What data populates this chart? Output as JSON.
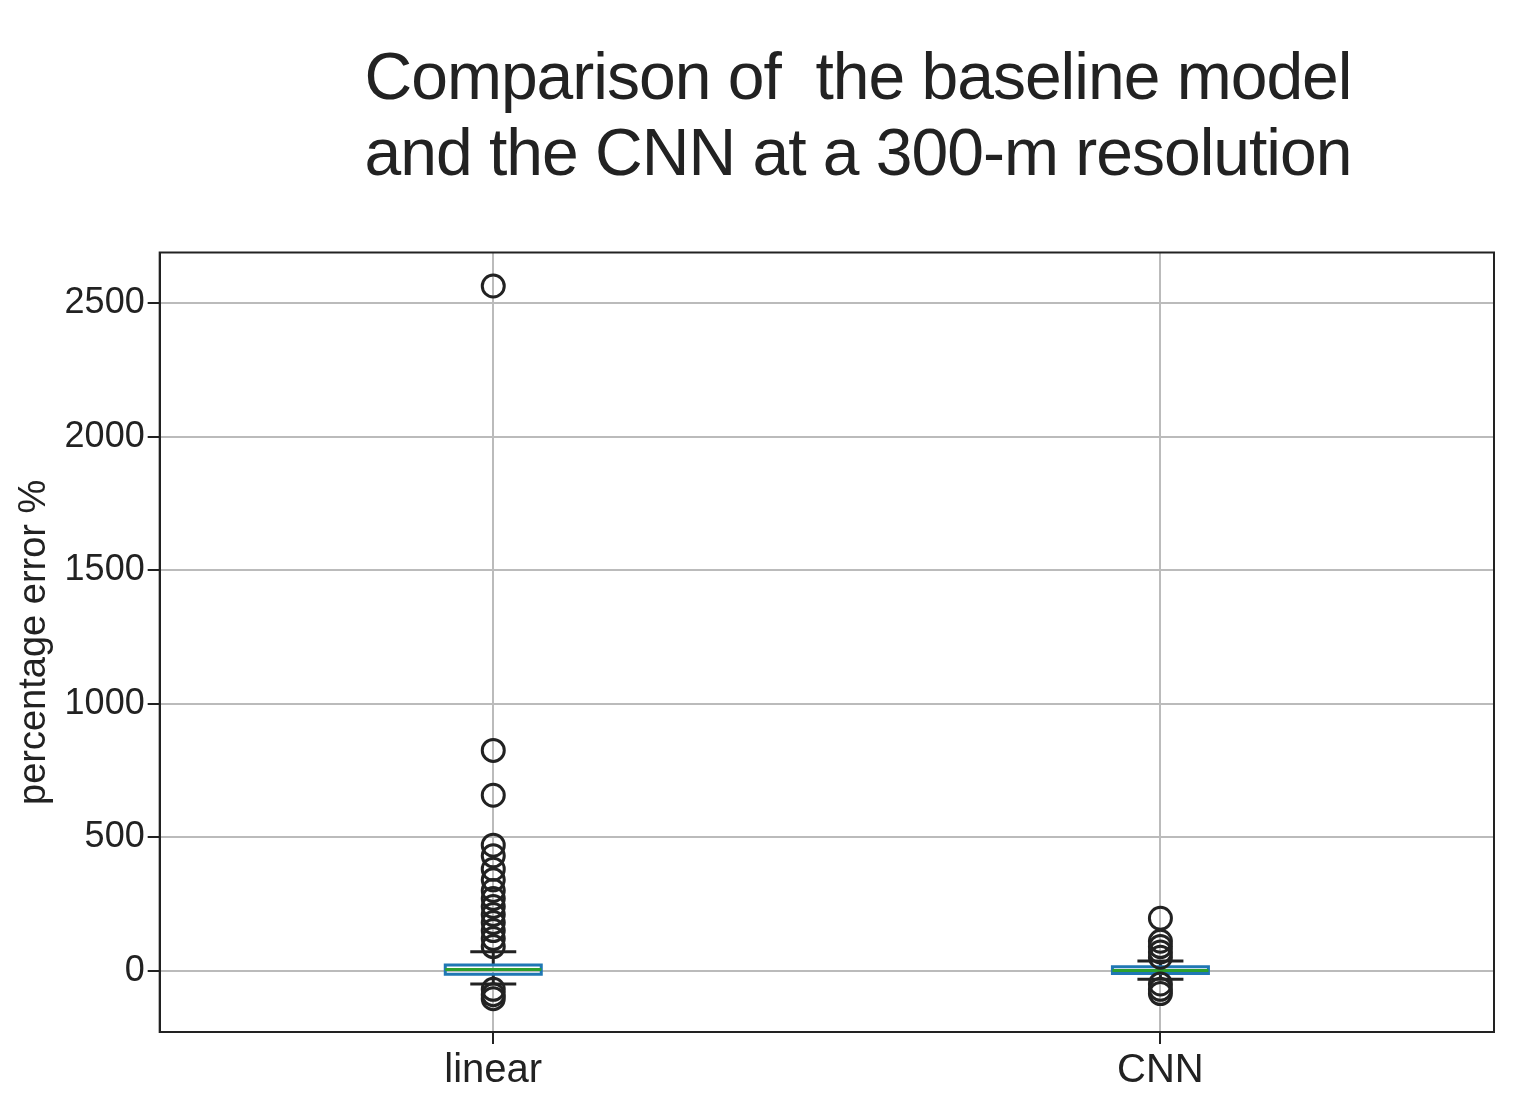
{
  "chart_data": {
    "type": "box",
    "title": "Comparison of  the baseline model\nand the CNN at a 300-m resolution",
    "ylabel": "percentage error %",
    "categories": [
      "linear",
      "CNN"
    ],
    "boxes": [
      {
        "low": -50,
        "q1": -14,
        "median": 4,
        "q3": 21,
        "high": 71,
        "outliers": [
          2565,
          825,
          657,
          470,
          430,
          380,
          340,
          300,
          270,
          240,
          210,
          180,
          150,
          120,
          90,
          -70,
          -90,
          -105
        ]
      },
      {
        "low": -32,
        "q1": -11,
        "median": 0,
        "q3": 14,
        "high": 36,
        "outliers": [
          196,
          110,
          90,
          70,
          50,
          -50,
          -70,
          -86
        ]
      }
    ],
    "color": "#1f77b4",
    "ylim": [
      -230,
      2690
    ],
    "yticks": [
      0,
      500,
      1000,
      1500,
      2000,
      2500
    ],
    "grid": true,
    "marker": "circle"
  }
}
